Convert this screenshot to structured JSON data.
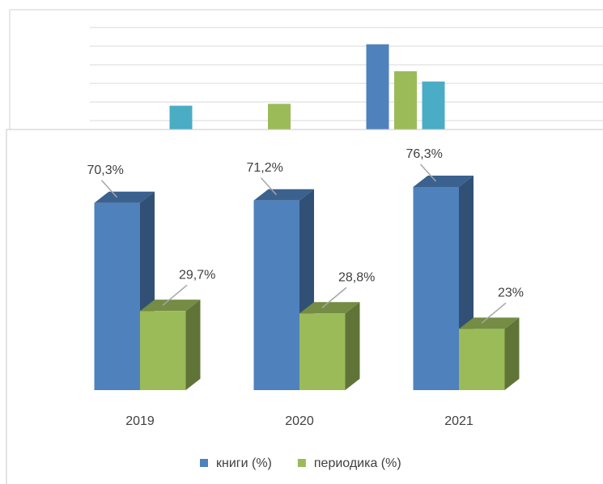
{
  "chart_data": [
    {
      "type": "bar",
      "categories": [
        null,
        null,
        null
      ],
      "series": [
        {
          "color": "#4f81bd",
          "values": [
            null,
            null,
            5.1
          ]
        },
        {
          "color": "#9bbb59",
          "values": [
            null,
            1.9,
            3.65
          ]
        },
        {
          "color": "#4bacc6",
          "values": [
            1.8,
            null,
            3.1
          ]
        }
      ],
      "ylim": [
        0,
        6
      ],
      "yticks": [
        1,
        2,
        3,
        4,
        5,
        6
      ],
      "grid": true
    },
    {
      "type": "bar3d",
      "categories": [
        "2019",
        "2020",
        "2021"
      ],
      "series": [
        {
          "name": "книги (%)",
          "color": "#4f81bd",
          "values": [
            70.3,
            71.2,
            76.3
          ],
          "value_labels": [
            "70,3%",
            "71,2%",
            "76,3%"
          ]
        },
        {
          "name": "периодика (%)",
          "color": "#9bbb59",
          "values": [
            29.7,
            28.8,
            23
          ],
          "value_labels": [
            "29,7%",
            "28,8%",
            "23%"
          ]
        }
      ],
      "ylim": [
        0,
        100
      ],
      "legend": "bottom"
    }
  ]
}
